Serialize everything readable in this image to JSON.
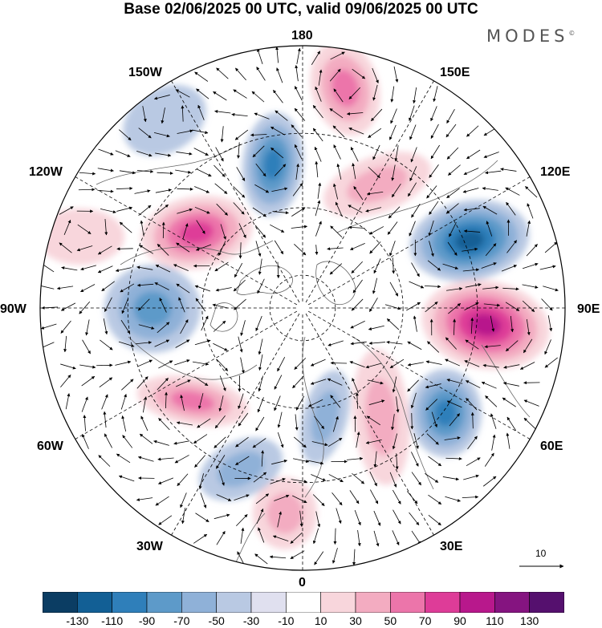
{
  "title": "Base 02/06/2025 00 UTC, valid 09/06/2025 00 UTC",
  "brand": "MODES",
  "brand_mark": "©",
  "longitude_labels": {
    "top": "180",
    "top_right": "150E",
    "upper_right": "120E",
    "right": "90E",
    "lower_right": "60E",
    "bottom_right": "30E",
    "bottom": "0",
    "bottom_left": "30W",
    "lower_left": "60W",
    "left": "90W",
    "upper_left": "120W",
    "top_left": "150W"
  },
  "reference_vector": {
    "label": "10"
  },
  "colorbar": {
    "ticks": [
      "-130",
      "-110",
      "-90",
      "-70",
      "-50",
      "-30",
      "-10",
      "10",
      "30",
      "50",
      "70",
      "90",
      "110",
      "130"
    ],
    "colors": [
      "#0b3d63",
      "#125f95",
      "#2f7fba",
      "#5d9ac9",
      "#8fb1d8",
      "#b9c9e3",
      "#e0e0ef",
      "#ffffff",
      "#f8d6dc",
      "#f3acc1",
      "#ec75aa",
      "#de3c98",
      "#b8188c",
      "#851480",
      "#55106e"
    ]
  },
  "map": {
    "projection": "north-polar-stereographic",
    "colors": {
      "coast": "#666666",
      "graticule": "#000000",
      "vector": "#000000",
      "border": "#000000"
    },
    "anomalies": [
      {
        "name": "high-180-north",
        "value": 70
      },
      {
        "name": "high-150e",
        "value": 50
      },
      {
        "name": "low-110e",
        "value": -110
      },
      {
        "name": "high-80e",
        "value": 110
      },
      {
        "name": "low-55e",
        "value": -90
      },
      {
        "name": "high-30e",
        "value": 50
      },
      {
        "name": "low-20e",
        "value": -50
      },
      {
        "name": "high-5w",
        "value": 50
      },
      {
        "name": "low-40w",
        "value": -50
      },
      {
        "name": "high-75w",
        "value": 70
      },
      {
        "name": "low-85w",
        "value": -70
      },
      {
        "name": "high-115w",
        "value": 90
      },
      {
        "name": "low-160w",
        "value": -90
      },
      {
        "name": "low-150w-outer",
        "value": -30
      },
      {
        "name": "high-125w-outer",
        "value": 30
      }
    ]
  }
}
